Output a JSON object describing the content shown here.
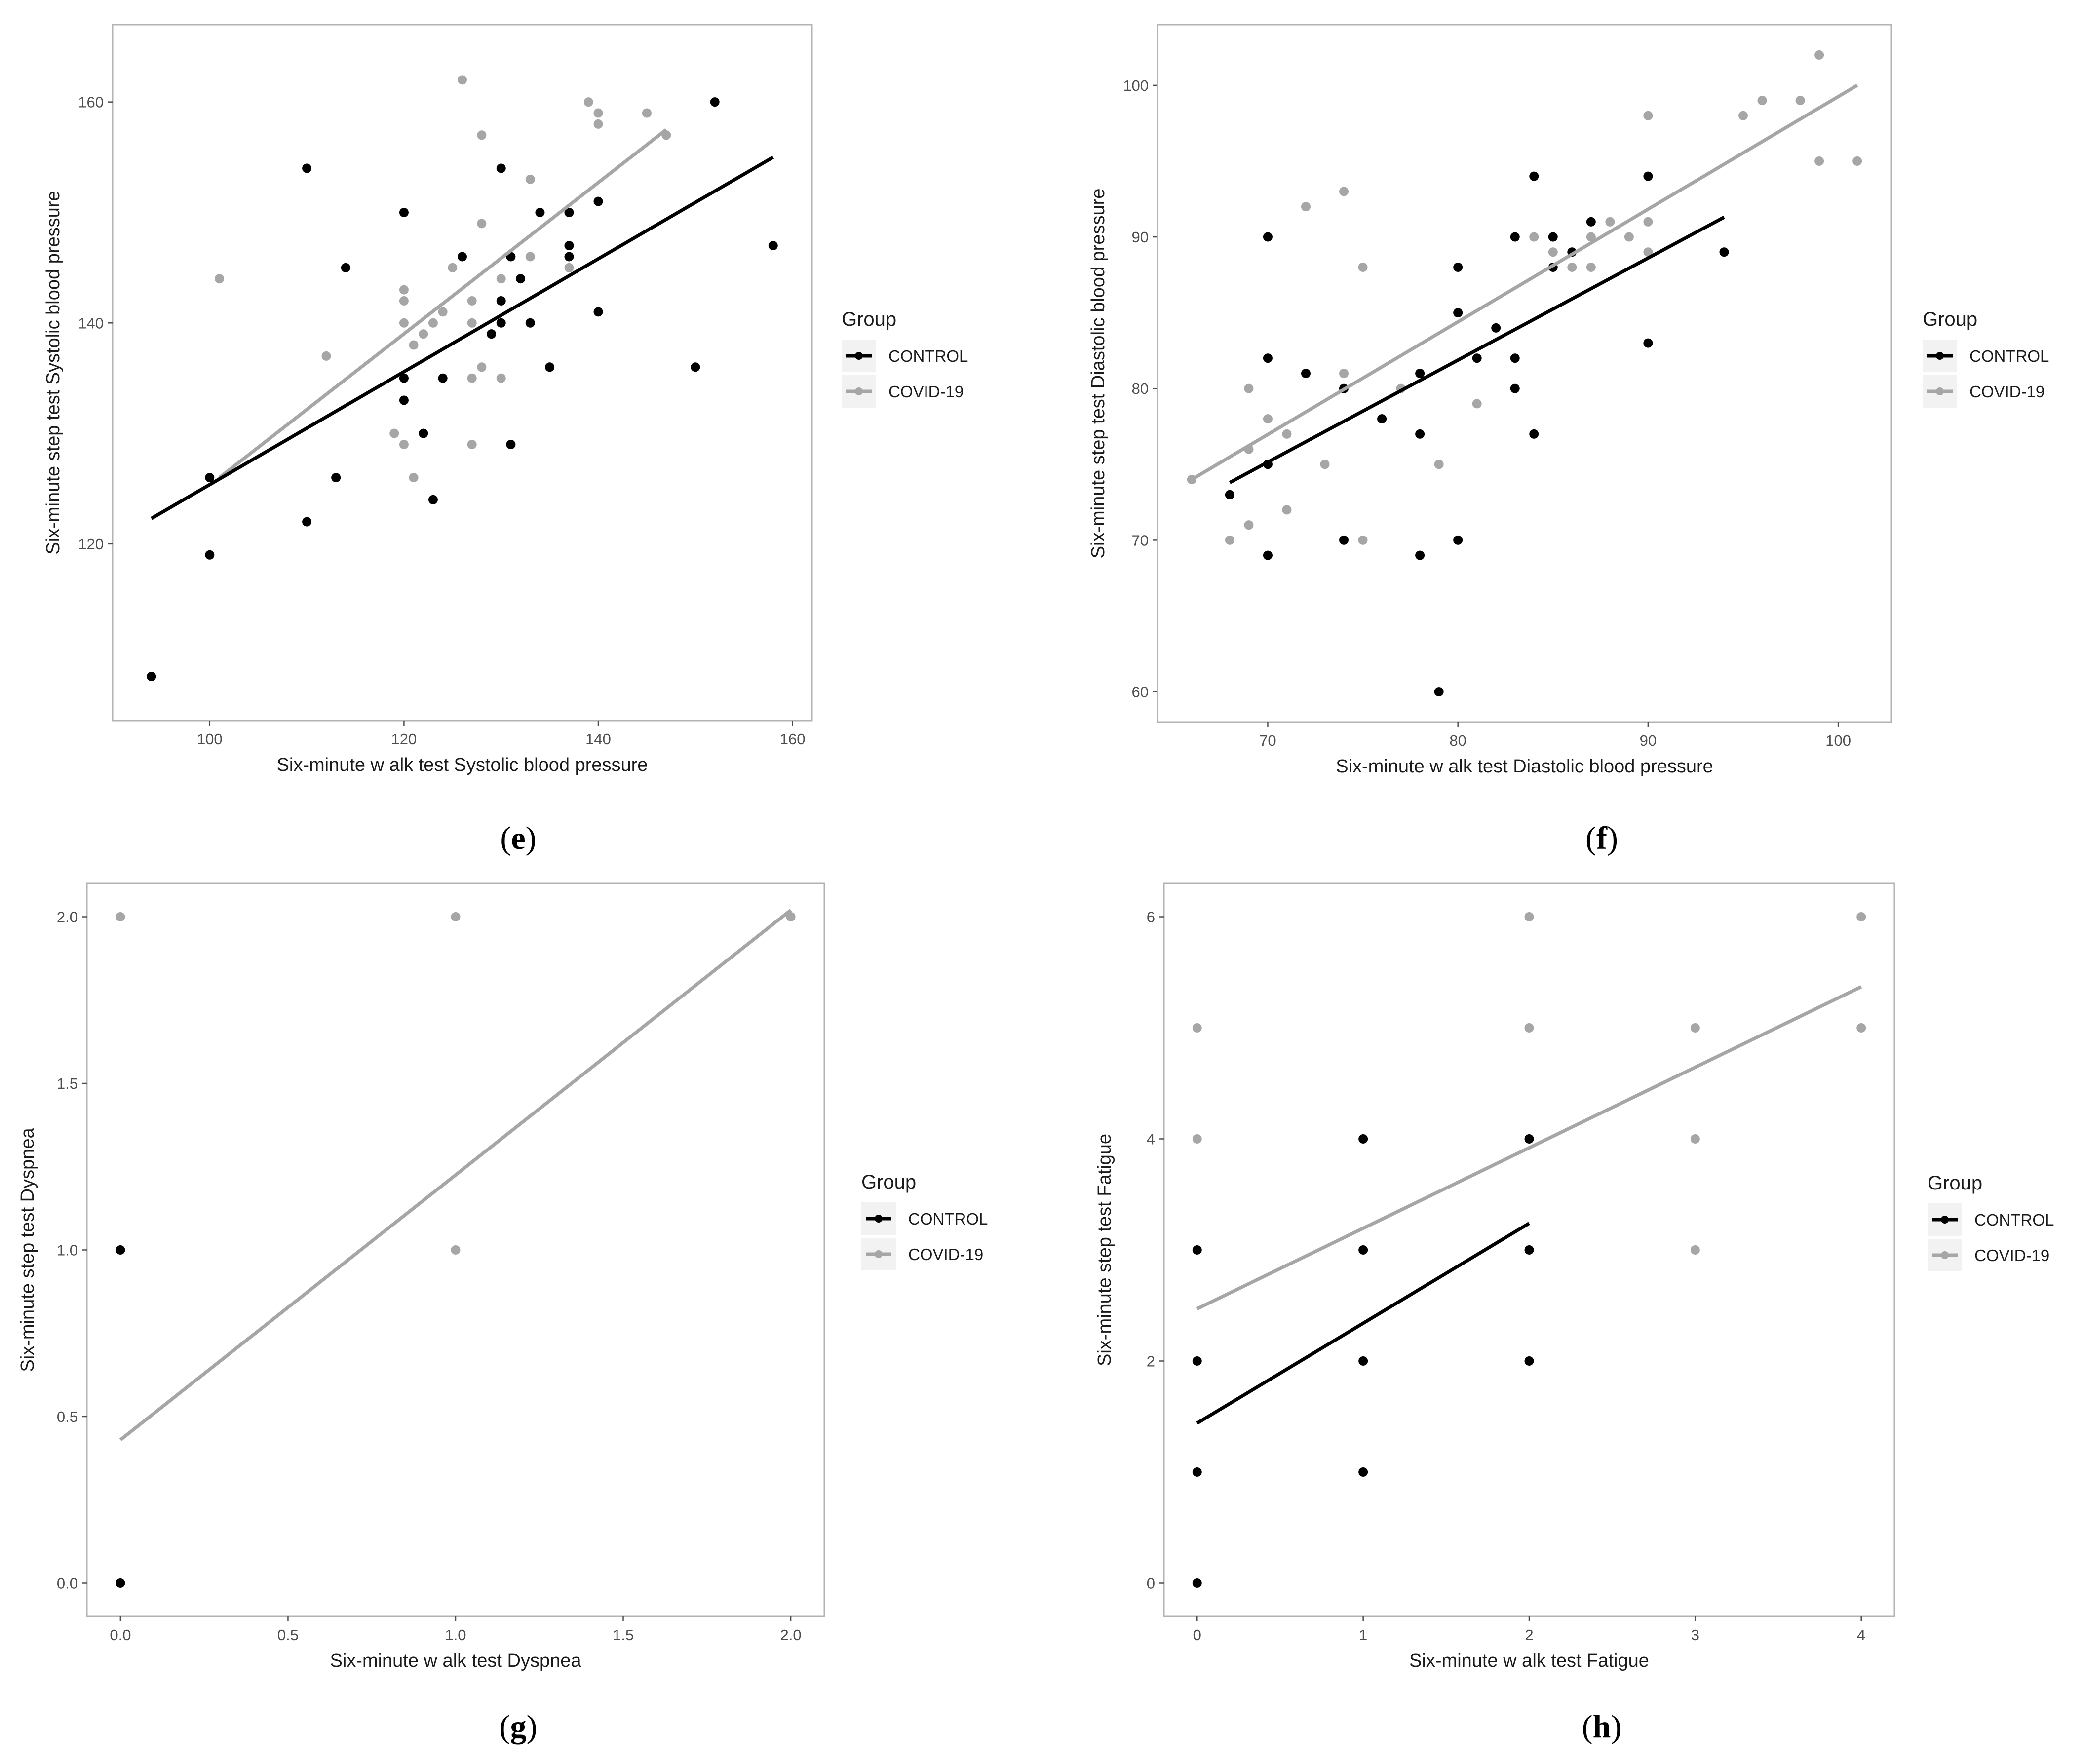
{
  "colors": {
    "CONTROL": "#000000",
    "COVID-19": "#a6a6a6",
    "panel_border": "#b3b3b3",
    "legend_key_bg": "#f2f2f2"
  },
  "legend": {
    "title": "Group",
    "groups": [
      "CONTROL",
      "COVID-19"
    ]
  },
  "chart_data": [
    {
      "type": "scatter",
      "panel": "e",
      "caption": {
        "open": "(",
        "letter": "e",
        "close": ")"
      },
      "xlabel": "Six-minute w alk test Systolic blood pressure",
      "ylabel": "Six-minute step test Systolic blood pressure",
      "xlim": [
        90,
        162
      ],
      "ylim": [
        104,
        167
      ],
      "xticks": [
        100,
        120,
        140,
        160
      ],
      "yticks": [
        120,
        140,
        160
      ],
      "series": [
        {
          "name": "CONTROL",
          "points": [
            [
              94,
              108
            ],
            [
              100,
              119
            ],
            [
              100,
              126
            ],
            [
              110,
              122
            ],
            [
              110,
              154
            ],
            [
              113,
              126
            ],
            [
              114,
              145
            ],
            [
              120,
              150
            ],
            [
              120,
              135
            ],
            [
              120,
              133
            ],
            [
              122,
              130
            ],
            [
              123,
              124
            ],
            [
              124,
              135
            ],
            [
              126,
              146
            ],
            [
              129,
              139
            ],
            [
              130,
              154
            ],
            [
              130,
              142
            ],
            [
              130,
              140
            ],
            [
              131,
              146
            ],
            [
              131,
              129
            ],
            [
              132,
              144
            ],
            [
              133,
              140
            ],
            [
              134,
              150
            ],
            [
              135,
              136
            ],
            [
              137,
              150
            ],
            [
              137,
              147
            ],
            [
              137,
              146
            ],
            [
              140,
              151
            ],
            [
              140,
              141
            ],
            [
              150,
              136
            ],
            [
              152,
              160
            ],
            [
              158,
              147
            ]
          ],
          "fit": [
            [
              94,
              122.3
            ],
            [
              158,
              155
            ]
          ]
        },
        {
          "name": "COVID-19",
          "points": [
            [
              101,
              144
            ],
            [
              112,
              137
            ],
            [
              119,
              130
            ],
            [
              120,
              143
            ],
            [
              120,
              142
            ],
            [
              120,
              140
            ],
            [
              120,
              129
            ],
            [
              121,
              126
            ],
            [
              121,
              138
            ],
            [
              122,
              139
            ],
            [
              123,
              140
            ],
            [
              124,
              141
            ],
            [
              125,
              145
            ],
            [
              126,
              162
            ],
            [
              127,
              142
            ],
            [
              127,
              140
            ],
            [
              127,
              135
            ],
            [
              127,
              129
            ],
            [
              128,
              157
            ],
            [
              128,
              149
            ],
            [
              128,
              136
            ],
            [
              130,
              135
            ],
            [
              130,
              144
            ],
            [
              133,
              153
            ],
            [
              133,
              146
            ],
            [
              137,
              145
            ],
            [
              139,
              160
            ],
            [
              140,
              159
            ],
            [
              140,
              158
            ],
            [
              145,
              159
            ],
            [
              147,
              157
            ]
          ],
          "fit": [
            [
              101,
              126
            ],
            [
              147,
              157.5
            ]
          ]
        }
      ]
    },
    {
      "type": "scatter",
      "panel": "f",
      "caption": {
        "open": "(",
        "letter": "f",
        "close": ")"
      },
      "xlabel": "Six-minute w alk test Diastolic blood pressure",
      "ylabel": "Six-minute step test Diastolic blood pressure",
      "xlim": [
        64.2,
        102.8
      ],
      "ylim": [
        58,
        104
      ],
      "xticks": [
        70,
        80,
        90,
        100
      ],
      "yticks": [
        60,
        70,
        80,
        90,
        100
      ],
      "series": [
        {
          "name": "CONTROL",
          "points": [
            [
              68,
              73
            ],
            [
              70,
              90
            ],
            [
              70,
              82
            ],
            [
              70,
              75
            ],
            [
              70,
              69
            ],
            [
              72,
              81
            ],
            [
              74,
              80
            ],
            [
              74,
              70
            ],
            [
              76,
              78
            ],
            [
              78,
              81
            ],
            [
              78,
              77
            ],
            [
              78,
              69
            ],
            [
              79,
              60
            ],
            [
              80,
              88
            ],
            [
              80,
              85
            ],
            [
              80,
              70
            ],
            [
              81,
              82
            ],
            [
              82,
              84
            ],
            [
              83,
              90
            ],
            [
              83,
              82
            ],
            [
              83,
              80
            ],
            [
              84,
              94
            ],
            [
              84,
              77
            ],
            [
              85,
              90
            ],
            [
              85,
              88
            ],
            [
              86,
              89
            ],
            [
              87,
              91
            ],
            [
              90,
              94
            ],
            [
              90,
              83
            ],
            [
              94,
              89
            ]
          ],
          "fit": [
            [
              68,
              73.8
            ],
            [
              94,
              91.3
            ]
          ]
        },
        {
          "name": "COVID-19",
          "points": [
            [
              66,
              74
            ],
            [
              68,
              70
            ],
            [
              69,
              80
            ],
            [
              69,
              76
            ],
            [
              69,
              71
            ],
            [
              70,
              78
            ],
            [
              71,
              77
            ],
            [
              71,
              72
            ],
            [
              72,
              92
            ],
            [
              73,
              75
            ],
            [
              74,
              93
            ],
            [
              74,
              81
            ],
            [
              75,
              88
            ],
            [
              75,
              70
            ],
            [
              77,
              80
            ],
            [
              79,
              75
            ],
            [
              81,
              79
            ],
            [
              84,
              90
            ],
            [
              85,
              89
            ],
            [
              86,
              88
            ],
            [
              87,
              90
            ],
            [
              87,
              88
            ],
            [
              88,
              91
            ],
            [
              89,
              90
            ],
            [
              90,
              98
            ],
            [
              90,
              91
            ],
            [
              90,
              89
            ],
            [
              95,
              98
            ],
            [
              96,
              99
            ],
            [
              98,
              99
            ],
            [
              99,
              102
            ],
            [
              99,
              95
            ],
            [
              101,
              95
            ]
          ],
          "fit": [
            [
              66,
              74
            ],
            [
              101,
              100
            ]
          ]
        }
      ]
    },
    {
      "type": "scatter",
      "panel": "g",
      "caption": {
        "open": "(",
        "letter": "g",
        "close": ")"
      },
      "xlabel": "Six-minute w alk test Dyspnea",
      "ylabel": "Six-minute step test Dyspnea",
      "xlim": [
        -0.1,
        2.1
      ],
      "ylim": [
        -0.1,
        2.1
      ],
      "xticks": [
        0.0,
        0.5,
        1.0,
        1.5,
        2.0
      ],
      "yticks": [
        0.0,
        0.5,
        1.0,
        1.5,
        2.0
      ],
      "tick_format": "fixed1",
      "series": [
        {
          "name": "CONTROL",
          "points": [
            [
              0,
              1
            ],
            [
              0,
              0
            ]
          ],
          "fit": []
        },
        {
          "name": "COVID-19",
          "points": [
            [
              0,
              2
            ],
            [
              1,
              2
            ],
            [
              1,
              1
            ],
            [
              2,
              2
            ]
          ],
          "fit": [
            [
              0,
              0.43
            ],
            [
              2,
              2.02
            ]
          ]
        }
      ]
    },
    {
      "type": "scatter",
      "panel": "h",
      "caption": {
        "open": "(",
        "letter": "h",
        "close": ")"
      },
      "xlabel": "Six-minute w alk test Fatigue",
      "ylabel": "Six-minute step test Fatigue",
      "xlim": [
        -0.2,
        4.2
      ],
      "ylim": [
        -0.3,
        6.3
      ],
      "xticks": [
        0,
        1,
        2,
        3,
        4
      ],
      "yticks": [
        0,
        2,
        4,
        6
      ],
      "series": [
        {
          "name": "CONTROL",
          "points": [
            [
              0,
              3
            ],
            [
              0,
              2
            ],
            [
              0,
              1
            ],
            [
              0,
              0
            ],
            [
              1,
              4
            ],
            [
              1,
              3
            ],
            [
              1,
              2
            ],
            [
              1,
              1
            ],
            [
              2,
              4
            ],
            [
              2,
              3
            ],
            [
              2,
              2
            ]
          ],
          "fit": [
            [
              0,
              1.44
            ],
            [
              2,
              3.24
            ]
          ]
        },
        {
          "name": "COVID-19",
          "points": [
            [
              0,
              5
            ],
            [
              0,
              4
            ],
            [
              2,
              6
            ],
            [
              2,
              5
            ],
            [
              3,
              5
            ],
            [
              3,
              4
            ],
            [
              3,
              3
            ],
            [
              4,
              6
            ],
            [
              4,
              5
            ]
          ],
          "fit": [
            [
              0,
              2.47
            ],
            [
              4,
              5.37
            ]
          ]
        }
      ]
    }
  ]
}
